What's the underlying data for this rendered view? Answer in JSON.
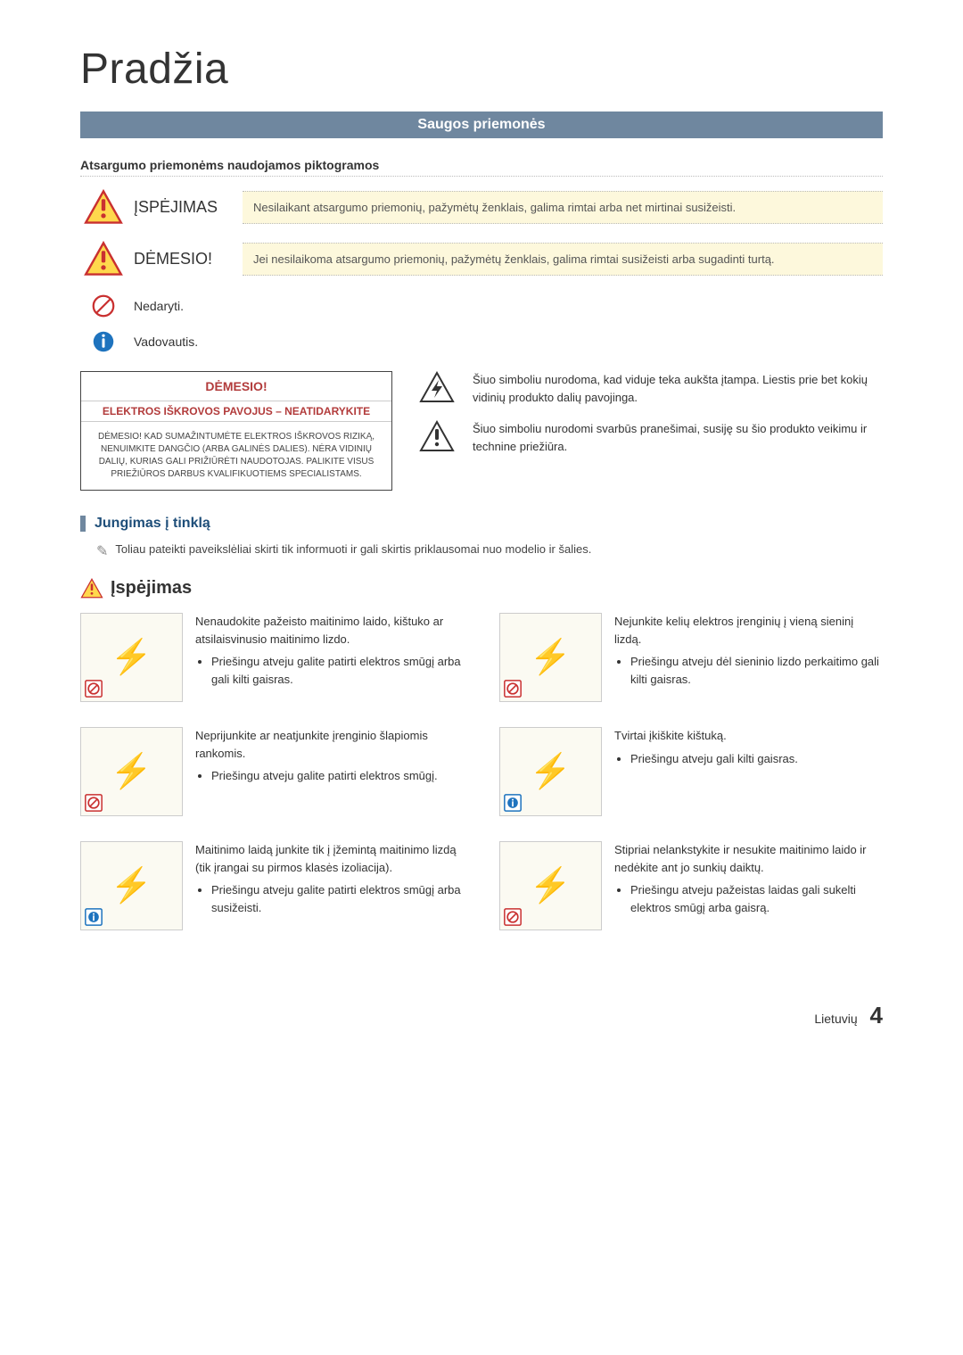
{
  "page": {
    "title": "Pradžia",
    "section_banner": "Saugos priemonės",
    "subheading": "Atsargumo priemonėms naudojamos piktogramos",
    "footer_lang": "Lietuvių",
    "footer_page": "4"
  },
  "pictograms": {
    "warning_label": "ĮSPĖJIMAS",
    "warning_desc": "Nesilaikant atsargumo priemonių, pažymėtų ženklais, galima rimtai arba net mirtinai susižeisti.",
    "caution_label": "DĖMESIO!",
    "caution_desc": "Jei nesilaikoma atsargumo priemonių, pažymėtų ženklais, galima rimtai susižeisti arba sugadinti turtą.",
    "forbid_label": "Nedaryti.",
    "follow_label": "Vadovautis."
  },
  "caution_box": {
    "title": "DĖMESIO!",
    "subtitle": "ELEKTROS IŠKROVOS PAVOJUS – NEATIDARYKITE",
    "body": "DĖMESIO! KAD SUMAŽINTUMĖTE ELEKTROS IŠKROVOS RIZIKĄ, NENUIMKITE DANGČIO (ARBA GALINĖS DALIES). NĖRA VIDINIŲ DALIŲ, KURIAS GALI PRIŽIŪRĖTI NAUDOTOJAS. PALIKITE VISUS PRIEŽIŪROS DARBUS KVALIFIKUOTIEMS SPECIALISTAMS."
  },
  "symbols": {
    "voltage": "Šiuo simboliu nurodoma, kad viduje teka aukšta įtampa. Liestis prie bet kokių vidinių produkto dalių pavojinga.",
    "info": "Šiuo simboliu nurodomi svarbūs pranešimai, susiję su šio produkto veikimu ir technine priežiūra."
  },
  "connection": {
    "heading": "Jungimas į tinklą",
    "note": "Toliau pateikti paveikslėliai skirti tik informuoti ir gali skirtis priklausomai nuo modelio ir šalies.",
    "warn_heading": "Įspėjimas"
  },
  "plug_items": [
    {
      "corner": "forbid",
      "title": "Nenaudokite pažeisto maitinimo laido, kištuko ar atsilaisvinusio maitinimo lizdo.",
      "bullet": "Priešingu atveju galite patirti elektros smūgį arba gali kilti gaisras."
    },
    {
      "corner": "forbid",
      "title": "Nejunkite kelių elektros įrenginių į vieną sieninį lizdą.",
      "bullet": "Priešingu atveju dėl sieninio lizdo perkaitimo gali kilti gaisras."
    },
    {
      "corner": "forbid",
      "title": "Neprijunkite ar neatjunkite įrenginio šlapiomis rankomis.",
      "bullet": "Priešingu atveju galite patirti elektros smūgį."
    },
    {
      "corner": "follow",
      "title": "Tvirtai įkiškite kištuką.",
      "bullet": "Priešingu atveju gali kilti gaisras."
    },
    {
      "corner": "follow",
      "title": "Maitinimo laidą junkite tik į įžemintą maitinimo lizdą (tik įrangai su pirmos klasės izoliacija).",
      "bullet": "Priešingu atveju galite patirti elektros smūgį arba susižeisti."
    },
    {
      "corner": "forbid",
      "title": "Stipriai nelankstykite ir nesukite maitinimo laido ir nedėkite ant jo sunkių daiktų.",
      "bullet": "Priešingu atveju pažeistas laidas gali sukelti elektros smūgį arba gaisrą."
    }
  ],
  "colors": {
    "banner_bg": "#6f879f",
    "accent_red": "#b23b3b",
    "desc_bg": "#fdf8dc",
    "thumb_bg": "#fbfaf2"
  }
}
